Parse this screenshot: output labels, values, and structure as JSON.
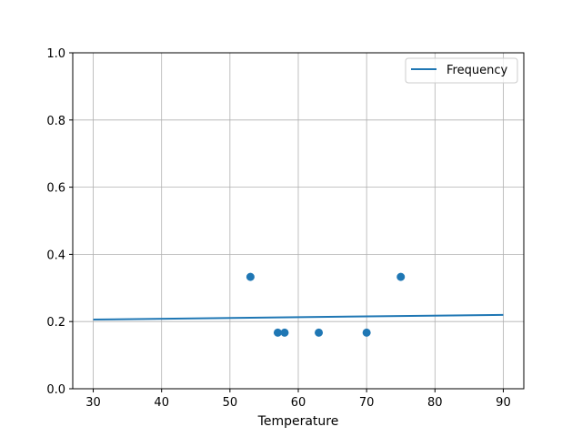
{
  "chart_data": {
    "type": "scatter",
    "title": "",
    "xlabel": "Temperature",
    "ylabel": "",
    "xlim": [
      27,
      93
    ],
    "ylim": [
      0,
      1.0
    ],
    "grid": true,
    "legend_placement": "top-right",
    "x_ticks": [
      "30",
      "40",
      "50",
      "60",
      "70",
      "80",
      "90"
    ],
    "y_ticks": [
      "0.0",
      "0.2",
      "0.4",
      "0.6",
      "0.8",
      "1.0"
    ],
    "color": "#1f77b4",
    "series": [
      {
        "name": "Frequency",
        "kind": "line",
        "x": [
          30,
          90
        ],
        "y": [
          0.206,
          0.22
        ]
      },
      {
        "kind": "scatter",
        "x": [
          53,
          57,
          58,
          63,
          70,
          75
        ],
        "y": [
          0.333,
          0.167,
          0.167,
          0.167,
          0.167,
          0.333
        ]
      }
    ]
  }
}
